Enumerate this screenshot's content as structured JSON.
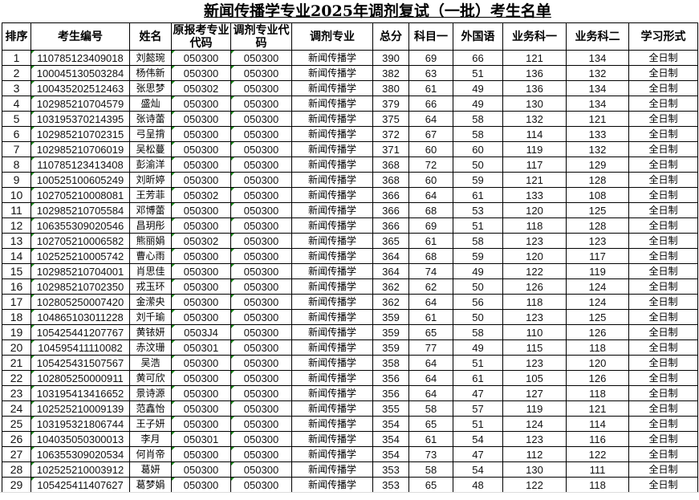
{
  "title": "新闻传播学专业2025年调剂复试（一批）考生名单",
  "headers": [
    "排序",
    "考生编号",
    "姓名",
    "原报考专业代码",
    "调剂专业代码",
    "调剂专业",
    "总分",
    "科目一",
    "外国语",
    "业务科一",
    "业务科二",
    "学习形式"
  ],
  "rows": [
    [
      "1",
      "110785123409018",
      "刘懿琬",
      "050300",
      "050300",
      "新闻传播学",
      "390",
      "69",
      "66",
      "121",
      "134",
      "全日制"
    ],
    [
      "2",
      "100045130503284",
      "杨伟新",
      "050300",
      "050300",
      "新闻传播学",
      "382",
      "63",
      "51",
      "136",
      "132",
      "全日制"
    ],
    [
      "3",
      "100435202512463",
      "张思梦",
      "050302",
      "050300",
      "新闻传播学",
      "380",
      "61",
      "49",
      "136",
      "134",
      "全日制"
    ],
    [
      "4",
      "102985210704579",
      "盛灿",
      "050300",
      "050300",
      "新闻传播学",
      "379",
      "66",
      "49",
      "130",
      "134",
      "全日制"
    ],
    [
      "5",
      "103195370214395",
      "张诗蕾",
      "050300",
      "050300",
      "新闻传播学",
      "375",
      "64",
      "58",
      "132",
      "121",
      "全日制"
    ],
    [
      "6",
      "102985210702315",
      "弓呈揹",
      "050300",
      "050300",
      "新闻传播学",
      "372",
      "67",
      "58",
      "114",
      "133",
      "全日制"
    ],
    [
      "7",
      "102985210706019",
      "吴松蔓",
      "050300",
      "050300",
      "新闻传播学",
      "371",
      "60",
      "60",
      "119",
      "132",
      "全日制"
    ],
    [
      "8",
      "110785123413408",
      "彭渝洋",
      "050300",
      "050300",
      "新闻传播学",
      "368",
      "72",
      "50",
      "117",
      "129",
      "全日制"
    ],
    [
      "9",
      "100525100605249",
      "刘昕婷",
      "050300",
      "050300",
      "新闻传播学",
      "368",
      "60",
      "59",
      "121",
      "128",
      "全日制"
    ],
    [
      "10",
      "102705210008081",
      "王芳菲",
      "050302",
      "050300",
      "新闻传播学",
      "366",
      "64",
      "61",
      "133",
      "108",
      "全日制"
    ],
    [
      "11",
      "102985210705584",
      "邓博蕾",
      "050300",
      "050300",
      "新闻传播学",
      "366",
      "68",
      "53",
      "120",
      "125",
      "全日制"
    ],
    [
      "12",
      "106355309020546",
      "昌玥彤",
      "050300",
      "050300",
      "新闻传播学",
      "366",
      "69",
      "51",
      "118",
      "128",
      "全日制"
    ],
    [
      "13",
      "102705210006582",
      "熊丽娟",
      "050302",
      "050300",
      "新闻传播学",
      "365",
      "61",
      "58",
      "123",
      "123",
      "全日制"
    ],
    [
      "14",
      "102525210005742",
      "曹心雨",
      "050300",
      "050300",
      "新闻传播学",
      "364",
      "68",
      "59",
      "120",
      "117",
      "全日制"
    ],
    [
      "15",
      "102985210704001",
      "肖思佳",
      "050300",
      "050300",
      "新闻传播学",
      "364",
      "74",
      "49",
      "122",
      "119",
      "全日制"
    ],
    [
      "16",
      "102985210702350",
      "戎玉环",
      "050300",
      "050300",
      "新闻传播学",
      "362",
      "62",
      "50",
      "126",
      "124",
      "全日制"
    ],
    [
      "17",
      "102805250007420",
      "金潆央",
      "050300",
      "050300",
      "新闻传播学",
      "362",
      "64",
      "56",
      "118",
      "124",
      "全日制"
    ],
    [
      "18",
      "104865103011228",
      "刘千瑜",
      "050300",
      "050300",
      "新闻传播学",
      "359",
      "61",
      "50",
      "123",
      "125",
      "全日制"
    ],
    [
      "19",
      "105425441207767",
      "黄铱妍",
      "0503J4",
      "050300",
      "新闻传播学",
      "359",
      "65",
      "58",
      "110",
      "126",
      "全日制"
    ],
    [
      "20",
      "104595411110082",
      "赤汶珊",
      "050301",
      "050300",
      "新闻传播学",
      "359",
      "77",
      "49",
      "115",
      "118",
      "全日制"
    ],
    [
      "21",
      "105425431507567",
      "吴浩",
      "050300",
      "050300",
      "新闻传播学",
      "358",
      "64",
      "51",
      "123",
      "120",
      "全日制"
    ],
    [
      "22",
      "102805250000911",
      "黄可欣",
      "050300",
      "050300",
      "新闻传播学",
      "356",
      "64",
      "61",
      "105",
      "126",
      "全日制"
    ],
    [
      "23",
      "103195413416652",
      "景诗源",
      "050300",
      "050300",
      "新闻传播学",
      "356",
      "64",
      "47",
      "127",
      "118",
      "全日制"
    ],
    [
      "24",
      "102525210009139",
      "范鑫怡",
      "050300",
      "050300",
      "新闻传播学",
      "355",
      "58",
      "57",
      "119",
      "121",
      "全日制"
    ],
    [
      "25",
      "103195321806744",
      "王子妍",
      "050300",
      "050300",
      "新闻传播学",
      "354",
      "65",
      "51",
      "124",
      "114",
      "全日制"
    ],
    [
      "26",
      "104035050300013",
      "李月",
      "050301",
      "050300",
      "新闻传播学",
      "354",
      "61",
      "54",
      "123",
      "116",
      "全日制"
    ],
    [
      "27",
      "106355309020534",
      "何肖帝",
      "050300",
      "050300",
      "新闻传播学",
      "354",
      "73",
      "47",
      "112",
      "122",
      "全日制"
    ],
    [
      "28",
      "102525210003912",
      "葛妍",
      "050300",
      "050300",
      "新闻传播学",
      "353",
      "58",
      "54",
      "130",
      "111",
      "全日制"
    ],
    [
      "29",
      "105425411407627",
      "葛梦娟",
      "050300",
      "050300",
      "新闻传播学",
      "353",
      "65",
      "48",
      "122",
      "118",
      "全日制"
    ]
  ]
}
